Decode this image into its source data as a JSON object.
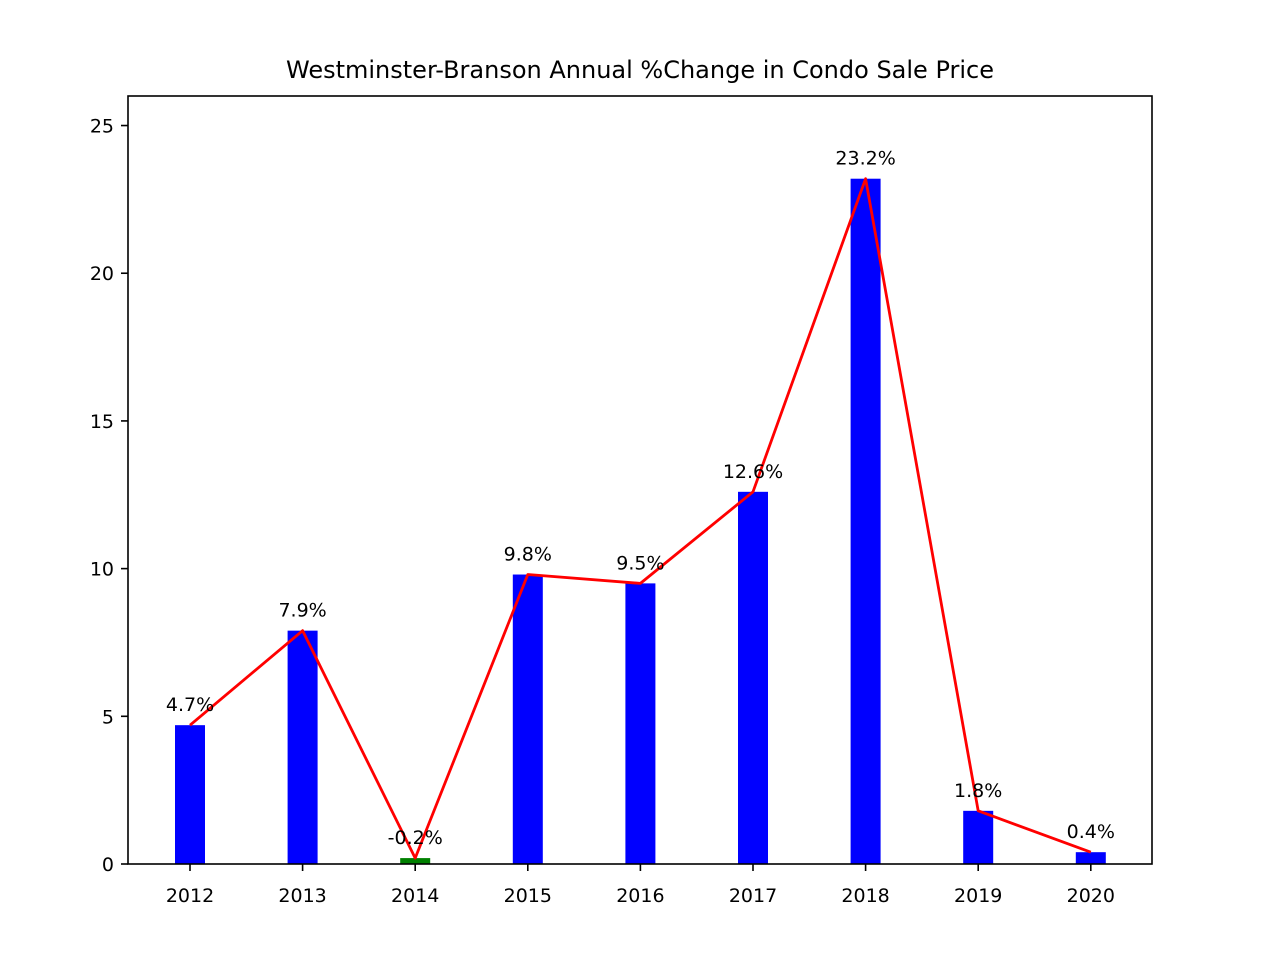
{
  "chart_data": {
    "type": "bar",
    "title": "Westminster-Branson Annual %Change in Condo Sale Price",
    "xlabel": "",
    "ylabel": "",
    "categories": [
      "2012",
      "2013",
      "2014",
      "2015",
      "2016",
      "2017",
      "2018",
      "2019",
      "2020"
    ],
    "values": [
      4.7,
      7.9,
      -0.2,
      9.8,
      9.5,
      12.6,
      23.2,
      1.8,
      0.4
    ],
    "data_labels": [
      "4.7%",
      "7.9%",
      "-0.2%",
      "9.8%",
      "9.5%",
      "12.6%",
      "23.2%",
      "1.8%",
      "0.4%"
    ],
    "bars_show_magnitude": true,
    "line_overlay": true,
    "ylim": [
      0,
      26
    ],
    "yticks": [
      0,
      5,
      10,
      15,
      20,
      25
    ],
    "grid": false,
    "colors": {
      "positive_bar": "#0000ff",
      "negative_bar": "#008000",
      "line": "#ff0000"
    }
  }
}
